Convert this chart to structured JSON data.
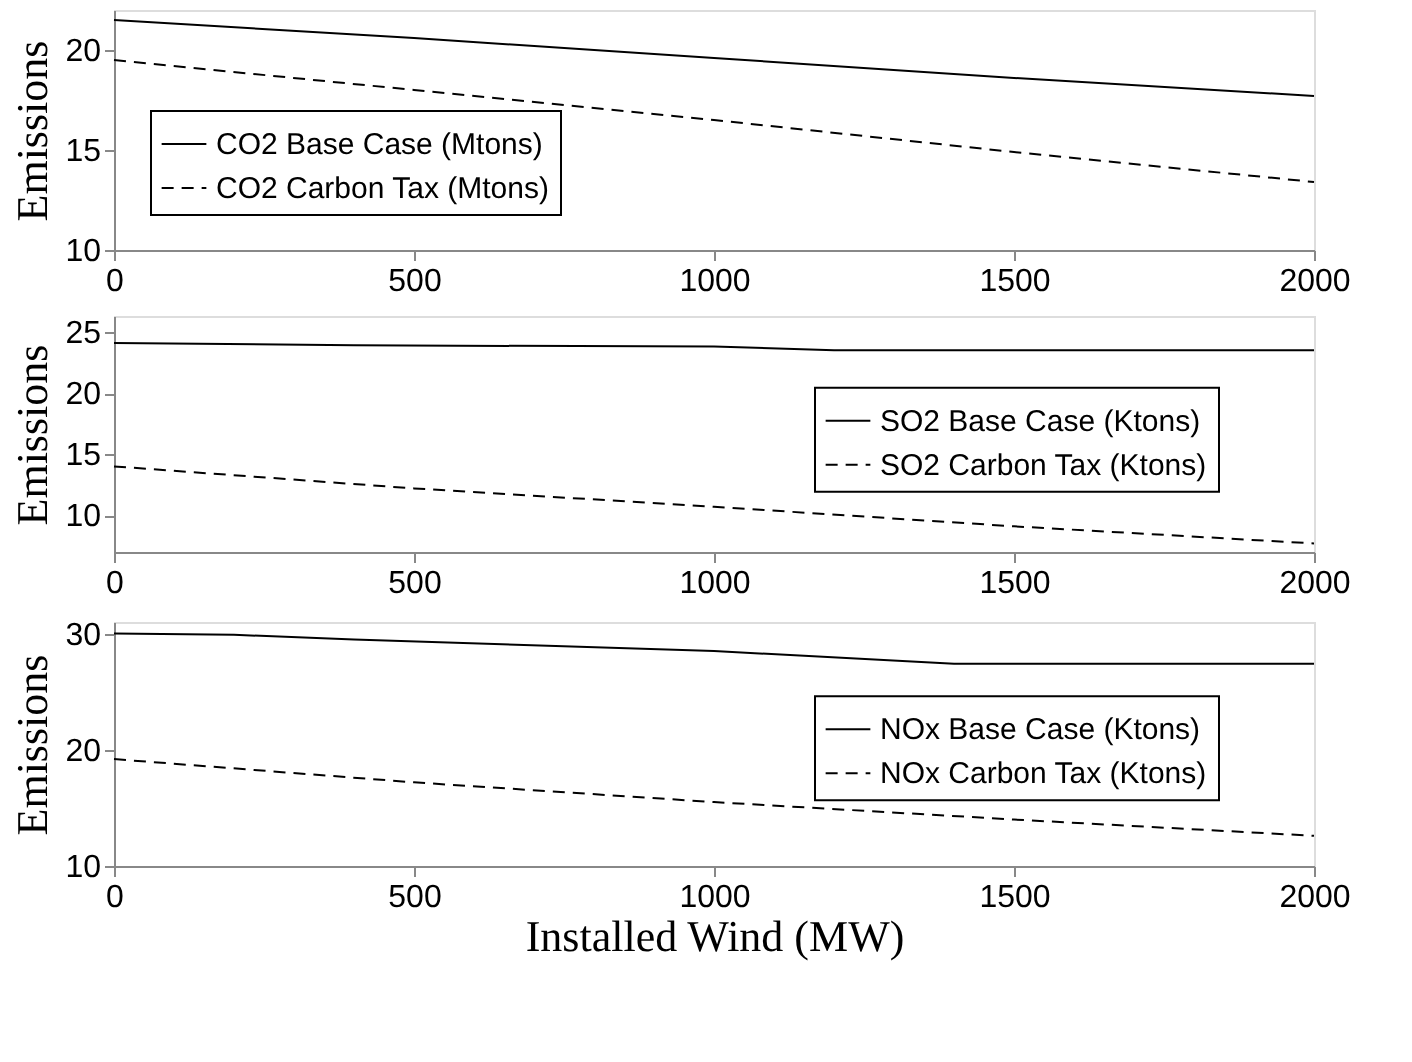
{
  "chart_data": [
    {
      "type": "line",
      "ylabel": "Emissions",
      "xlim": [
        0,
        2000
      ],
      "xticks": [
        0,
        500,
        1000,
        1500,
        2000
      ],
      "ylim": [
        10,
        22
      ],
      "yticks": [
        10,
        15,
        20
      ],
      "grid": false,
      "legend": "bottom left",
      "marker": "none",
      "series": [
        {
          "name": "CO2 Base Case (Mtons)",
          "color": "#000000",
          "line_style": "solid",
          "x": [
            0,
            500,
            1000,
            1500,
            2000
          ],
          "values": [
            21.5,
            20.6,
            19.6,
            18.6,
            17.7
          ]
        },
        {
          "name": "CO2 Carbon Tax (Mtons)",
          "color": "#000000",
          "line_style": "dashed",
          "x": [
            0,
            500,
            1000,
            1500,
            2000
          ],
          "values": [
            19.5,
            18.0,
            16.5,
            14.9,
            13.4
          ]
        }
      ]
    },
    {
      "type": "line",
      "ylabel": "Emissions",
      "xlim": [
        0,
        2000
      ],
      "xticks": [
        0,
        500,
        1000,
        1500,
        2000
      ],
      "ylim": [
        7,
        26.3
      ],
      "yticks": [
        10,
        15,
        20,
        25
      ],
      "grid": false,
      "legend": "right",
      "marker": "none",
      "series": [
        {
          "name": "SO2 Base Case (Ktons)",
          "color": "#000000",
          "line_style": "solid",
          "x": [
            0,
            400,
            1000,
            1200,
            2000
          ],
          "values": [
            24.1,
            23.9,
            23.8,
            23.5,
            23.5
          ]
        },
        {
          "name": "SO2 Carbon Tax (Ktons)",
          "color": "#000000",
          "line_style": "dashed",
          "x": [
            0,
            500,
            1000,
            1500,
            2000
          ],
          "values": [
            14.0,
            12.2,
            10.7,
            9.1,
            7.7
          ]
        }
      ]
    },
    {
      "type": "line",
      "ylabel": "Emissions",
      "xlabel": "Installed Wind (MW)",
      "xlim": [
        0,
        2000
      ],
      "xticks": [
        0,
        500,
        1000,
        1500,
        2000
      ],
      "ylim": [
        10,
        31
      ],
      "yticks": [
        10,
        20,
        30
      ],
      "grid": false,
      "legend": "right",
      "marker": "none",
      "series": [
        {
          "name": "NOx Base Case (Ktons)",
          "color": "#000000",
          "line_style": "solid",
          "x": [
            0,
            200,
            400,
            1000,
            1400,
            2000
          ],
          "values": [
            30.0,
            29.9,
            29.5,
            28.5,
            27.4,
            27.4
          ]
        },
        {
          "name": "NOx Carbon Tax (Ktons)",
          "color": "#000000",
          "line_style": "dashed",
          "x": [
            0,
            500,
            1000,
            1500,
            2000
          ],
          "values": [
            19.2,
            17.2,
            15.5,
            14.0,
            12.6
          ]
        }
      ]
    }
  ]
}
